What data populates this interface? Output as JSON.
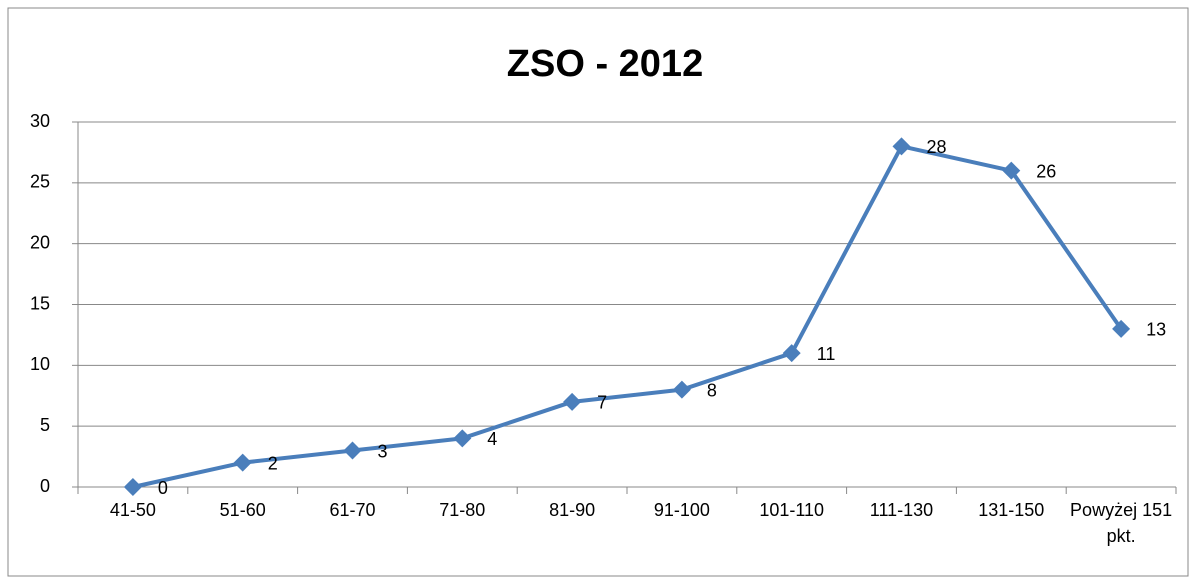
{
  "chart_data": {
    "type": "line",
    "title": "ZSO - 2012",
    "categories": [
      "41-50",
      "51-60",
      "61-70",
      "71-80",
      "81-90",
      "91-100",
      "101-110",
      "111-130",
      "131-150",
      "Powyżej 151 pkt."
    ],
    "series": [
      {
        "name": "ZSO - 2012",
        "color": "#4a7ebb",
        "values": [
          0,
          2,
          3,
          4,
          7,
          8,
          11,
          28,
          26,
          13
        ]
      }
    ],
    "ylim": [
      0,
      30
    ],
    "yticks": [
      0,
      5,
      10,
      15,
      20,
      25,
      30
    ],
    "grid": true
  }
}
